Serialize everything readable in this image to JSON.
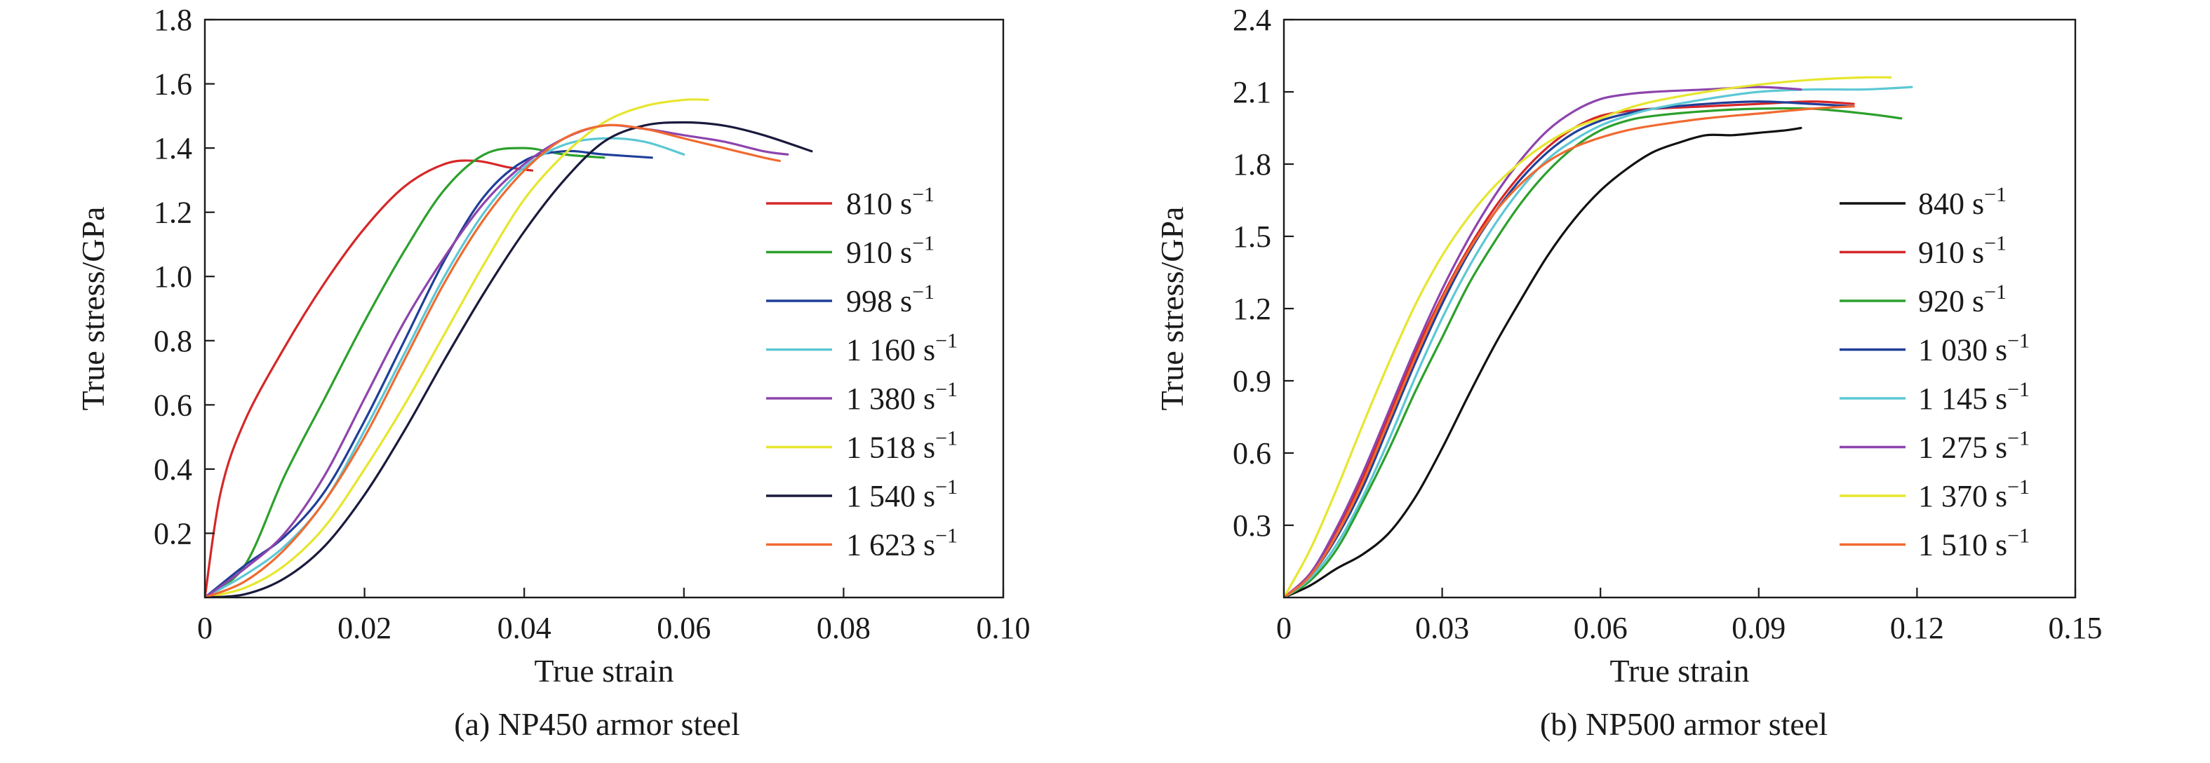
{
  "chart_data": [
    {
      "type": "line",
      "caption": "(a) NP450 armor steel",
      "xlabel": "True strain",
      "ylabel": "True stress/GPa",
      "xlim": [
        0,
        0.1
      ],
      "ylim": [
        0,
        1.8
      ],
      "xticks": [
        0,
        0.02,
        0.04,
        0.06,
        0.08,
        0.1
      ],
      "xtick_labels": [
        "0",
        "0.02",
        "0.04",
        "0.06",
        "0.08",
        "0.10"
      ],
      "yticks": [
        0.2,
        0.4,
        0.6,
        0.8,
        1.0,
        1.2,
        1.4,
        1.6,
        1.8
      ],
      "ytick_labels": [
        "0.2",
        "0.4",
        "0.6",
        "0.8",
        "1.0",
        "1.2",
        "1.4",
        "1.6",
        "1.8"
      ],
      "legend_position": "center-right",
      "series": [
        {
          "name": "810",
          "unit": "s",
          "exp": "−1",
          "color": "#d62728",
          "x": [
            0,
            0.002,
            0.005,
            0.01,
            0.015,
            0.02,
            0.025,
            0.03,
            0.034,
            0.038,
            0.041
          ],
          "y": [
            0,
            0.33,
            0.55,
            0.78,
            0.98,
            1.15,
            1.28,
            1.35,
            1.36,
            1.34,
            1.33
          ]
        },
        {
          "name": "910",
          "unit": "s",
          "exp": "−1",
          "color": "#2ca02c",
          "x": [
            0,
            0.005,
            0.01,
            0.015,
            0.02,
            0.025,
            0.03,
            0.035,
            0.04,
            0.045,
            0.05
          ],
          "y": [
            0,
            0.1,
            0.38,
            0.62,
            0.86,
            1.08,
            1.27,
            1.38,
            1.4,
            1.38,
            1.37
          ]
        },
        {
          "name": "998",
          "unit": "s",
          "exp": "−1",
          "color": "#1f3f99",
          "x": [
            0,
            0.005,
            0.01,
            0.015,
            0.02,
            0.025,
            0.03,
            0.035,
            0.04,
            0.045,
            0.05,
            0.056
          ],
          "y": [
            0,
            0.1,
            0.19,
            0.33,
            0.55,
            0.8,
            1.05,
            1.25,
            1.36,
            1.39,
            1.38,
            1.37
          ]
        },
        {
          "name": "1 160",
          "unit": "s",
          "exp": "−1",
          "color": "#5cc8d4",
          "x": [
            0,
            0.005,
            0.01,
            0.015,
            0.02,
            0.025,
            0.03,
            0.035,
            0.04,
            0.045,
            0.05,
            0.055,
            0.06
          ],
          "y": [
            0,
            0.07,
            0.16,
            0.3,
            0.52,
            0.76,
            1.0,
            1.2,
            1.34,
            1.41,
            1.43,
            1.42,
            1.38
          ]
        },
        {
          "name": "1 380",
          "unit": "s",
          "exp": "−1",
          "color": "#8e44ad",
          "x": [
            0,
            0.005,
            0.01,
            0.015,
            0.02,
            0.025,
            0.03,
            0.035,
            0.04,
            0.045,
            0.05,
            0.055,
            0.06,
            0.065,
            0.07,
            0.073
          ],
          "y": [
            0,
            0.09,
            0.2,
            0.38,
            0.62,
            0.86,
            1.06,
            1.23,
            1.35,
            1.43,
            1.47,
            1.46,
            1.44,
            1.42,
            1.39,
            1.38
          ]
        },
        {
          "name": "1 518",
          "unit": "s",
          "exp": "−1",
          "color": "#e6e62e",
          "x": [
            0,
            0.005,
            0.01,
            0.015,
            0.02,
            0.025,
            0.03,
            0.035,
            0.04,
            0.045,
            0.05,
            0.055,
            0.06,
            0.063
          ],
          "y": [
            0,
            0.03,
            0.1,
            0.22,
            0.4,
            0.6,
            0.82,
            1.04,
            1.24,
            1.38,
            1.48,
            1.53,
            1.55,
            1.55
          ]
        },
        {
          "name": "1 540",
          "unit": "s",
          "exp": "−1",
          "color": "#1a1a3d",
          "x": [
            0,
            0.005,
            0.01,
            0.015,
            0.02,
            0.025,
            0.03,
            0.035,
            0.04,
            0.045,
            0.05,
            0.055,
            0.06,
            0.065,
            0.07,
            0.076
          ],
          "y": [
            0,
            0.01,
            0.06,
            0.16,
            0.32,
            0.52,
            0.74,
            0.95,
            1.14,
            1.3,
            1.42,
            1.47,
            1.48,
            1.47,
            1.44,
            1.39
          ]
        },
        {
          "name": "1 623",
          "unit": "s",
          "exp": "−1",
          "color": "#f06a30",
          "x": [
            0,
            0.005,
            0.01,
            0.015,
            0.02,
            0.025,
            0.03,
            0.035,
            0.04,
            0.045,
            0.05,
            0.055,
            0.06,
            0.065,
            0.07,
            0.072
          ],
          "y": [
            0,
            0.05,
            0.15,
            0.3,
            0.5,
            0.74,
            0.98,
            1.18,
            1.33,
            1.43,
            1.47,
            1.46,
            1.43,
            1.4,
            1.37,
            1.36
          ]
        }
      ]
    },
    {
      "type": "line",
      "caption": "(b) NP500 armor steel",
      "xlabel": "True strain",
      "ylabel": "True stress/GPa",
      "xlim": [
        0,
        0.15
      ],
      "ylim": [
        0,
        2.4
      ],
      "xticks": [
        0,
        0.03,
        0.06,
        0.09,
        0.12,
        0.15
      ],
      "xtick_labels": [
        "0",
        "0.03",
        "0.06",
        "0.09",
        "0.12",
        "0.15"
      ],
      "yticks": [
        0.3,
        0.6,
        0.9,
        1.2,
        1.5,
        1.8,
        2.1,
        2.4
      ],
      "ytick_labels": [
        "0.3",
        "0.6",
        "0.9",
        "1.2",
        "1.5",
        "1.8",
        "2.1",
        "2.4"
      ],
      "legend_position": "center-right",
      "series": [
        {
          "name": "840",
          "unit": "s",
          "exp": "−1",
          "color": "#111111",
          "x": [
            0,
            0.005,
            0.01,
            0.015,
            0.02,
            0.025,
            0.03,
            0.035,
            0.04,
            0.045,
            0.05,
            0.055,
            0.06,
            0.065,
            0.07,
            0.075,
            0.08,
            0.085,
            0.09,
            0.095,
            0.098
          ],
          "y": [
            0,
            0.05,
            0.12,
            0.18,
            0.27,
            0.42,
            0.62,
            0.84,
            1.05,
            1.24,
            1.42,
            1.57,
            1.69,
            1.78,
            1.85,
            1.89,
            1.92,
            1.92,
            1.93,
            1.94,
            1.95
          ]
        },
        {
          "name": "910",
          "unit": "s",
          "exp": "−1",
          "color": "#d62728",
          "x": [
            0,
            0.005,
            0.01,
            0.015,
            0.02,
            0.025,
            0.03,
            0.035,
            0.04,
            0.045,
            0.05,
            0.055,
            0.06,
            0.065,
            0.07,
            0.08,
            0.09,
            0.1,
            0.108
          ],
          "y": [
            0,
            0.1,
            0.28,
            0.5,
            0.76,
            1.02,
            1.25,
            1.45,
            1.62,
            1.76,
            1.87,
            1.95,
            2.0,
            2.02,
            2.03,
            2.04,
            2.05,
            2.06,
            2.05
          ]
        },
        {
          "name": "920",
          "unit": "s",
          "exp": "−1",
          "color": "#2ca02c",
          "x": [
            0,
            0.005,
            0.01,
            0.015,
            0.02,
            0.025,
            0.03,
            0.035,
            0.04,
            0.045,
            0.05,
            0.055,
            0.06,
            0.065,
            0.07,
            0.08,
            0.09,
            0.1,
            0.11,
            0.117
          ],
          "y": [
            0,
            0.07,
            0.2,
            0.4,
            0.62,
            0.86,
            1.08,
            1.3,
            1.48,
            1.64,
            1.77,
            1.87,
            1.94,
            1.98,
            2.0,
            2.02,
            2.03,
            2.03,
            2.01,
            1.99
          ]
        },
        {
          "name": "1 030",
          "unit": "s",
          "exp": "−1",
          "color": "#1f3f99",
          "x": [
            0,
            0.005,
            0.01,
            0.015,
            0.02,
            0.025,
            0.03,
            0.035,
            0.04,
            0.045,
            0.05,
            0.055,
            0.06,
            0.065,
            0.07,
            0.08,
            0.09,
            0.1,
            0.108
          ],
          "y": [
            0,
            0.09,
            0.25,
            0.46,
            0.72,
            0.98,
            1.22,
            1.43,
            1.6,
            1.74,
            1.85,
            1.93,
            1.98,
            2.01,
            2.03,
            2.05,
            2.06,
            2.05,
            2.04
          ]
        },
        {
          "name": "1 145",
          "unit": "s",
          "exp": "−1",
          "color": "#5cc8d4",
          "x": [
            0,
            0.005,
            0.01,
            0.015,
            0.02,
            0.025,
            0.03,
            0.035,
            0.04,
            0.045,
            0.05,
            0.055,
            0.06,
            0.065,
            0.07,
            0.08,
            0.09,
            0.1,
            0.11,
            0.119
          ],
          "y": [
            0,
            0.08,
            0.22,
            0.42,
            0.66,
            0.92,
            1.16,
            1.37,
            1.55,
            1.7,
            1.82,
            1.9,
            1.96,
            2.0,
            2.03,
            2.07,
            2.1,
            2.11,
            2.11,
            2.12
          ]
        },
        {
          "name": "1 275",
          "unit": "s",
          "exp": "−1",
          "color": "#8e44ad",
          "x": [
            0,
            0.005,
            0.01,
            0.015,
            0.02,
            0.025,
            0.03,
            0.035,
            0.04,
            0.045,
            0.05,
            0.055,
            0.06,
            0.065,
            0.07,
            0.08,
            0.09,
            0.098
          ],
          "y": [
            0,
            0.1,
            0.29,
            0.52,
            0.78,
            1.04,
            1.28,
            1.49,
            1.67,
            1.82,
            1.94,
            2.02,
            2.07,
            2.09,
            2.1,
            2.11,
            2.12,
            2.11
          ]
        },
        {
          "name": "1 370",
          "unit": "s",
          "exp": "−1",
          "color": "#e6e62e",
          "x": [
            0,
            0.005,
            0.01,
            0.015,
            0.02,
            0.025,
            0.03,
            0.035,
            0.04,
            0.045,
            0.05,
            0.055,
            0.06,
            0.065,
            0.07,
            0.08,
            0.09,
            0.1,
            0.11,
            0.115
          ],
          "y": [
            0,
            0.2,
            0.45,
            0.72,
            0.98,
            1.22,
            1.42,
            1.58,
            1.71,
            1.81,
            1.89,
            1.95,
            1.99,
            2.03,
            2.06,
            2.1,
            2.13,
            2.15,
            2.16,
            2.16
          ]
        },
        {
          "name": "1 510",
          "unit": "s",
          "exp": "−1",
          "color": "#f06a30",
          "x": [
            0,
            0.005,
            0.01,
            0.015,
            0.02,
            0.025,
            0.03,
            0.035,
            0.04,
            0.045,
            0.05,
            0.055,
            0.06,
            0.065,
            0.07,
            0.08,
            0.09,
            0.1,
            0.108
          ],
          "y": [
            0,
            0.09,
            0.26,
            0.48,
            0.74,
            1.0,
            1.24,
            1.44,
            1.6,
            1.72,
            1.81,
            1.87,
            1.91,
            1.94,
            1.96,
            1.99,
            2.01,
            2.03,
            2.04
          ]
        }
      ]
    }
  ]
}
